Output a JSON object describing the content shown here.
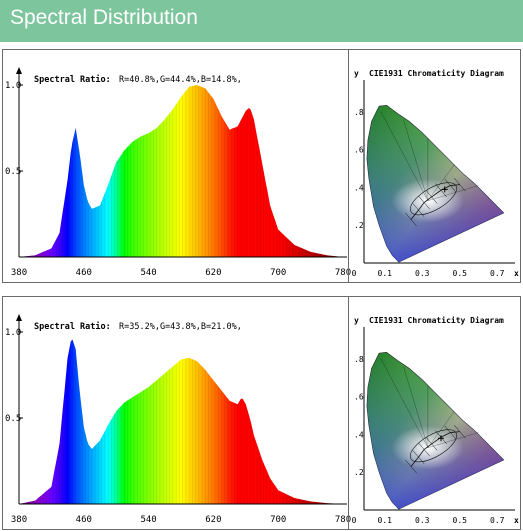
{
  "header": {
    "title": "Spectral Distribution"
  },
  "chart_data": [
    {
      "type": "area",
      "ratio_prefix": "Spectral Ratio:",
      "ratio_text": "R=40.8%,G=44.4%,B=14.8%,",
      "x_ticks": [
        "380",
        "460",
        "540",
        "620",
        "700",
        "780"
      ],
      "y_ticks": [
        "1.0",
        "0.5"
      ],
      "xlim": [
        380,
        780
      ],
      "ylim": [
        0,
        1
      ],
      "x": [
        380,
        400,
        420,
        430,
        440,
        445,
        450,
        455,
        460,
        465,
        470,
        480,
        490,
        500,
        510,
        520,
        530,
        540,
        550,
        560,
        570,
        580,
        590,
        600,
        610,
        620,
        630,
        640,
        650,
        660,
        665,
        670,
        680,
        690,
        700,
        720,
        740,
        760,
        780
      ],
      "values": [
        0.0,
        0.01,
        0.05,
        0.14,
        0.45,
        0.65,
        0.75,
        0.6,
        0.42,
        0.32,
        0.28,
        0.3,
        0.42,
        0.55,
        0.62,
        0.67,
        0.7,
        0.72,
        0.75,
        0.8,
        0.86,
        0.93,
        0.99,
        1.0,
        0.98,
        0.92,
        0.82,
        0.74,
        0.76,
        0.85,
        0.87,
        0.8,
        0.55,
        0.3,
        0.16,
        0.07,
        0.03,
        0.01,
        0.0
      ]
    },
    {
      "type": "area",
      "ratio_prefix": "Spectral Ratio:",
      "ratio_text": "R=35.2%,G=43.8%,B=21.0%,",
      "x_ticks": [
        "380",
        "460",
        "540",
        "620",
        "700",
        "780"
      ],
      "y_ticks": [
        "1.0",
        "0.5"
      ],
      "xlim": [
        380,
        780
      ],
      "ylim": [
        0,
        1
      ],
      "x": [
        380,
        400,
        420,
        430,
        440,
        445,
        450,
        455,
        460,
        465,
        470,
        480,
        490,
        500,
        510,
        520,
        530,
        540,
        550,
        560,
        570,
        580,
        590,
        600,
        610,
        620,
        630,
        640,
        650,
        655,
        660,
        665,
        670,
        680,
        690,
        700,
        720,
        740,
        760,
        780
      ],
      "values": [
        0.0,
        0.02,
        0.1,
        0.35,
        0.85,
        0.97,
        0.9,
        0.65,
        0.45,
        0.35,
        0.32,
        0.37,
        0.46,
        0.54,
        0.59,
        0.62,
        0.65,
        0.68,
        0.72,
        0.76,
        0.8,
        0.84,
        0.85,
        0.83,
        0.78,
        0.72,
        0.66,
        0.6,
        0.58,
        0.62,
        0.58,
        0.5,
        0.4,
        0.26,
        0.15,
        0.08,
        0.035,
        0.015,
        0.005,
        0.0
      ]
    }
  ],
  "cie": {
    "title": "CIE1931 Chromaticity Diagram",
    "y_axis": "y",
    "x_axis": "x",
    "x_ticks": [
      "0",
      "0.1",
      "0.3",
      "0.5",
      "0.7"
    ],
    "y_ticks": [
      ".8",
      ".6",
      ".4",
      ".2"
    ]
  }
}
